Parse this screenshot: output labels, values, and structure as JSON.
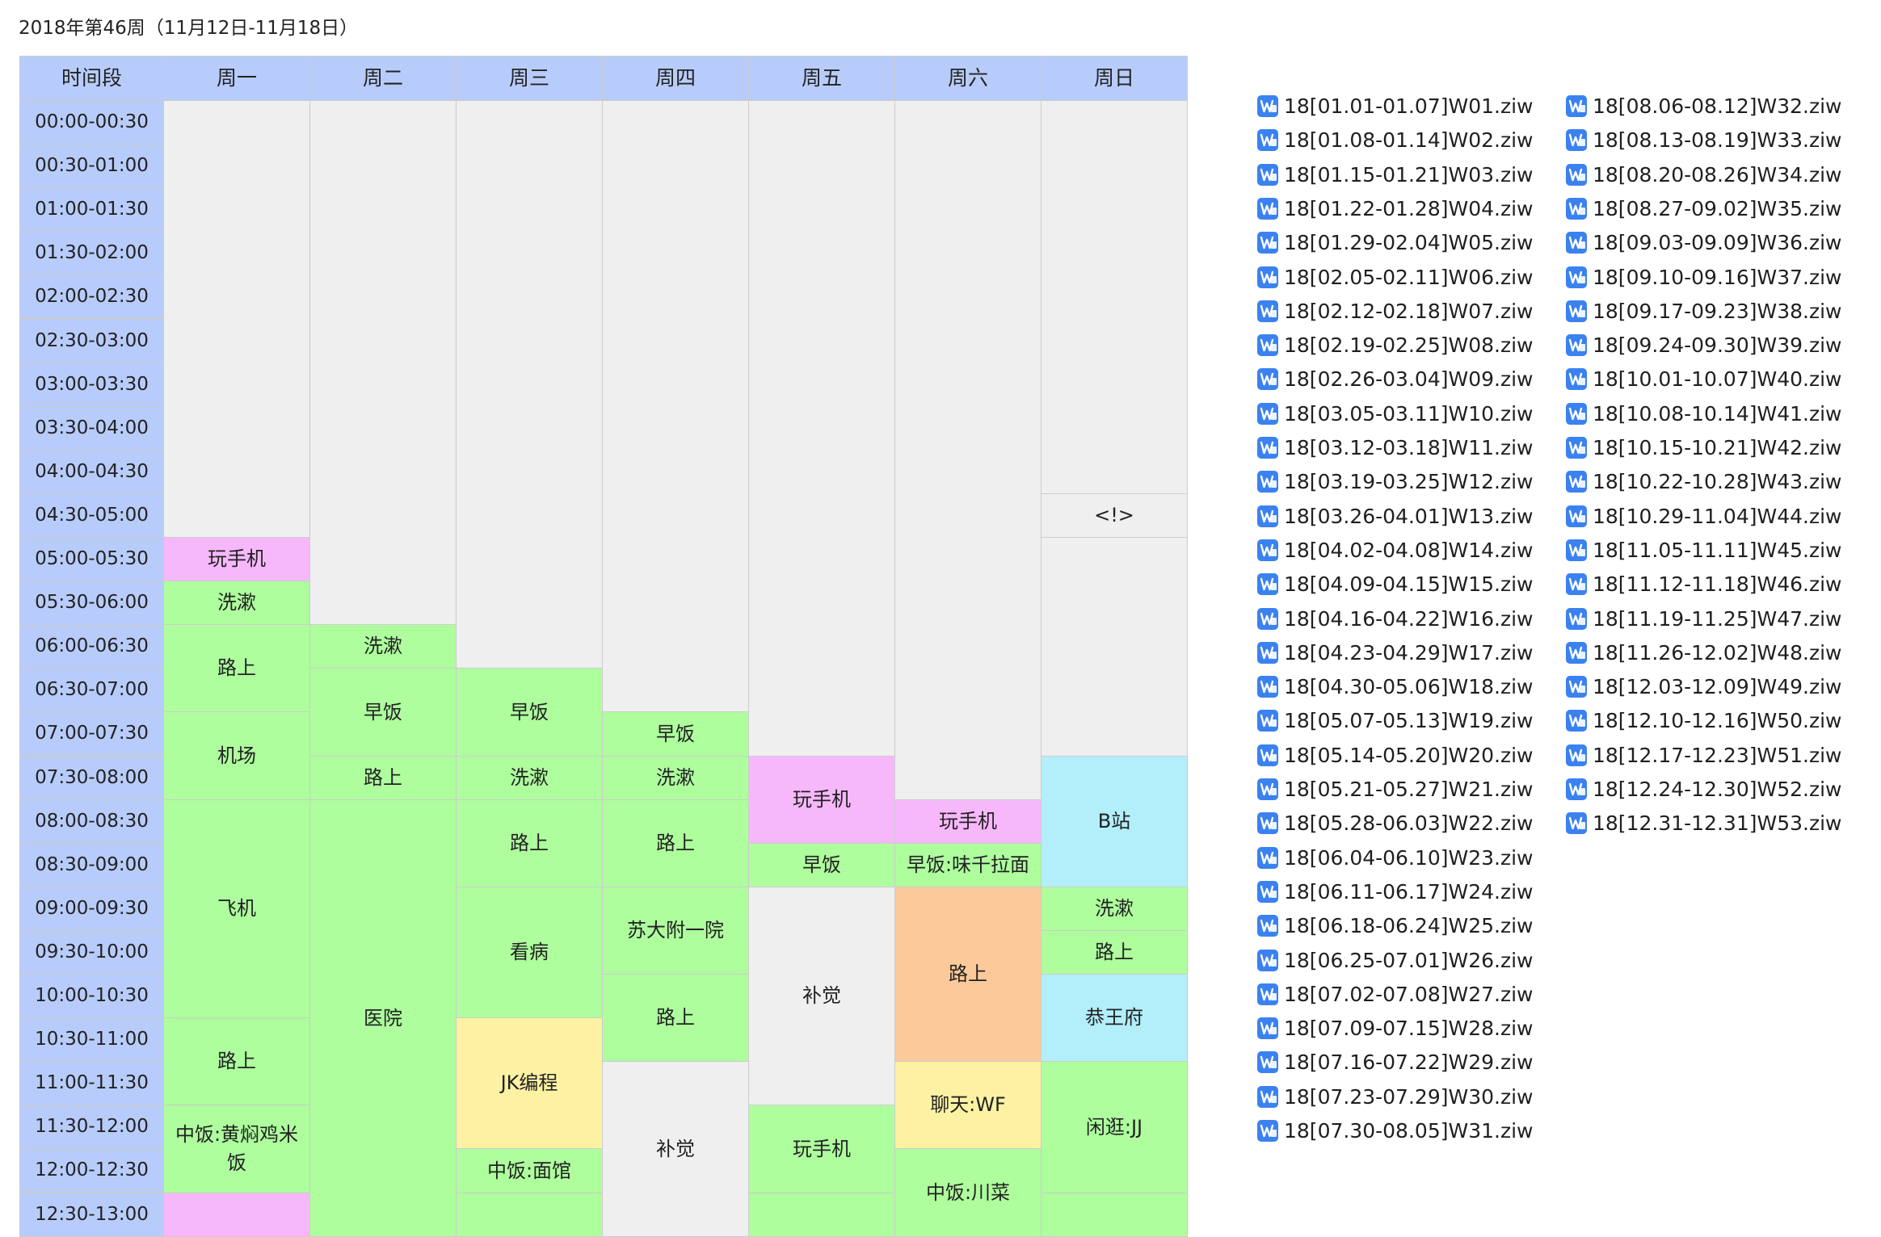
{
  "title": "2018年第46周（11月12日-11月18日）",
  "headers": [
    "时间段",
    "周一",
    "周二",
    "周三",
    "周四",
    "周五",
    "周六",
    "周日"
  ],
  "time_slots": [
    "00:00-00:30",
    "00:30-01:00",
    "01:00-01:30",
    "01:30-02:00",
    "02:00-02:30",
    "02:30-03:00",
    "03:00-03:30",
    "03:30-04:00",
    "04:00-04:30",
    "04:30-05:00",
    "05:00-05:30",
    "05:30-06:00",
    "06:00-06:30",
    "06:30-07:00",
    "07:00-07:30",
    "07:30-08:00",
    "08:00-08:30",
    "08:30-09:00",
    "09:00-09:30",
    "09:30-10:00",
    "10:00-10:30",
    "10:30-11:00",
    "11:00-11:30",
    "11:30-12:00",
    "12:00-12:30",
    "12:30-13:00"
  ],
  "colors": {
    "header": "#b8ccfb",
    "empty": "#efefef",
    "green": "#aefe9e",
    "pink": "#f7b8fb",
    "cyan": "#b2effb",
    "orange": "#fcca9a",
    "yellow": "#fdf2a3",
    "icon": "#3b82f0"
  },
  "schedule": [
    [
      {
        "label": "",
        "start": 0,
        "span": 10,
        "color": "empty"
      },
      {
        "label": "玩手机",
        "start": 10,
        "span": 1,
        "color": "pink"
      },
      {
        "label": "洗漱",
        "start": 11,
        "span": 1,
        "color": "green"
      },
      {
        "label": "路上",
        "start": 12,
        "span": 2,
        "color": "green"
      },
      {
        "label": "机场",
        "start": 14,
        "span": 2,
        "color": "green"
      },
      {
        "label": "飞机",
        "start": 16,
        "span": 5,
        "color": "green"
      },
      {
        "label": "路上",
        "start": 21,
        "span": 2,
        "color": "green"
      },
      {
        "label": "中饭:黄焖鸡米饭",
        "start": 23,
        "span": 2,
        "color": "green"
      },
      {
        "label": "",
        "start": 25,
        "span": 1,
        "color": "pink"
      }
    ],
    [
      {
        "label": "",
        "start": 0,
        "span": 12,
        "color": "empty"
      },
      {
        "label": "洗漱",
        "start": 12,
        "span": 1,
        "color": "green"
      },
      {
        "label": "早饭",
        "start": 13,
        "span": 2,
        "color": "green"
      },
      {
        "label": "路上",
        "start": 15,
        "span": 1,
        "color": "green"
      },
      {
        "label": "医院",
        "start": 16,
        "span": 10,
        "color": "green"
      }
    ],
    [
      {
        "label": "",
        "start": 0,
        "span": 13,
        "color": "empty"
      },
      {
        "label": "早饭",
        "start": 13,
        "span": 2,
        "color": "green"
      },
      {
        "label": "洗漱",
        "start": 15,
        "span": 1,
        "color": "green"
      },
      {
        "label": "路上",
        "start": 16,
        "span": 2,
        "color": "green"
      },
      {
        "label": "看病",
        "start": 18,
        "span": 3,
        "color": "green"
      },
      {
        "label": "JK编程",
        "start": 21,
        "span": 3,
        "color": "yellow"
      },
      {
        "label": "中饭:面馆",
        "start": 24,
        "span": 1,
        "color": "green"
      },
      {
        "label": "",
        "start": 25,
        "span": 1,
        "color": "green"
      }
    ],
    [
      {
        "label": "",
        "start": 0,
        "span": 14,
        "color": "empty"
      },
      {
        "label": "早饭",
        "start": 14,
        "span": 1,
        "color": "green"
      },
      {
        "label": "洗漱",
        "start": 15,
        "span": 1,
        "color": "green"
      },
      {
        "label": "路上",
        "start": 16,
        "span": 2,
        "color": "green"
      },
      {
        "label": "苏大附一院",
        "start": 18,
        "span": 2,
        "color": "green"
      },
      {
        "label": "路上",
        "start": 20,
        "span": 2,
        "color": "green"
      },
      {
        "label": "补觉",
        "start": 22,
        "span": 4,
        "color": "empty"
      }
    ],
    [
      {
        "label": "",
        "start": 0,
        "span": 15,
        "color": "empty"
      },
      {
        "label": "玩手机",
        "start": 15,
        "span": 2,
        "color": "pink"
      },
      {
        "label": "早饭",
        "start": 17,
        "span": 1,
        "color": "green"
      },
      {
        "label": "补觉",
        "start": 18,
        "span": 5,
        "color": "empty"
      },
      {
        "label": "玩手机",
        "start": 23,
        "span": 2,
        "color": "green"
      },
      {
        "label": "",
        "start": 25,
        "span": 1,
        "color": "green"
      }
    ],
    [
      {
        "label": "",
        "start": 0,
        "span": 16,
        "color": "empty"
      },
      {
        "label": "玩手机",
        "start": 16,
        "span": 1,
        "color": "pink"
      },
      {
        "label": "早饭:味千拉面",
        "start": 17,
        "span": 1,
        "color": "green"
      },
      {
        "label": "路上",
        "start": 18,
        "span": 4,
        "color": "orange"
      },
      {
        "label": "聊天:WF",
        "start": 22,
        "span": 2,
        "color": "yellow"
      },
      {
        "label": "中饭:川菜",
        "start": 24,
        "span": 2,
        "color": "green"
      }
    ],
    [
      {
        "label": "",
        "start": 0,
        "span": 9,
        "color": "empty"
      },
      {
        "label": "<!>",
        "start": 9,
        "span": 1,
        "color": "empty"
      },
      {
        "label": "",
        "start": 10,
        "span": 5,
        "color": "empty"
      },
      {
        "label": "B站",
        "start": 15,
        "span": 3,
        "color": "cyan"
      },
      {
        "label": "洗漱",
        "start": 18,
        "span": 1,
        "color": "green"
      },
      {
        "label": "路上",
        "start": 19,
        "span": 1,
        "color": "green"
      },
      {
        "label": "恭王府",
        "start": 20,
        "span": 2,
        "color": "cyan"
      },
      {
        "label": "闲逛:JJ",
        "start": 22,
        "span": 3,
        "color": "green"
      },
      {
        "label": "",
        "start": 25,
        "span": 1,
        "color": "green"
      }
    ]
  ],
  "files": {
    "icon": "word-doc-icon",
    "columns": [
      [
        "18[01.01-01.07]W01.ziw",
        "18[01.08-01.14]W02.ziw",
        "18[01.15-01.21]W03.ziw",
        "18[01.22-01.28]W04.ziw",
        "18[01.29-02.04]W05.ziw",
        "18[02.05-02.11]W06.ziw",
        "18[02.12-02.18]W07.ziw",
        "18[02.19-02.25]W08.ziw",
        "18[02.26-03.04]W09.ziw",
        "18[03.05-03.11]W10.ziw",
        "18[03.12-03.18]W11.ziw",
        "18[03.19-03.25]W12.ziw",
        "18[03.26-04.01]W13.ziw",
        "18[04.02-04.08]W14.ziw",
        "18[04.09-04.15]W15.ziw",
        "18[04.16-04.22]W16.ziw",
        "18[04.23-04.29]W17.ziw",
        "18[04.30-05.06]W18.ziw",
        "18[05.07-05.13]W19.ziw",
        "18[05.14-05.20]W20.ziw",
        "18[05.21-05.27]W21.ziw",
        "18[05.28-06.03]W22.ziw",
        "18[06.04-06.10]W23.ziw",
        "18[06.11-06.17]W24.ziw",
        "18[06.18-06.24]W25.ziw",
        "18[06.25-07.01]W26.ziw",
        "18[07.02-07.08]W27.ziw",
        "18[07.09-07.15]W28.ziw",
        "18[07.16-07.22]W29.ziw",
        "18[07.23-07.29]W30.ziw",
        "18[07.30-08.05]W31.ziw"
      ],
      [
        "18[08.06-08.12]W32.ziw",
        "18[08.13-08.19]W33.ziw",
        "18[08.20-08.26]W34.ziw",
        "18[08.27-09.02]W35.ziw",
        "18[09.03-09.09]W36.ziw",
        "18[09.10-09.16]W37.ziw",
        "18[09.17-09.23]W38.ziw",
        "18[09.24-09.30]W39.ziw",
        "18[10.01-10.07]W40.ziw",
        "18[10.08-10.14]W41.ziw",
        "18[10.15-10.21]W42.ziw",
        "18[10.22-10.28]W43.ziw",
        "18[10.29-11.04]W44.ziw",
        "18[11.05-11.11]W45.ziw",
        "18[11.12-11.18]W46.ziw",
        "18[11.19-11.25]W47.ziw",
        "18[11.26-12.02]W48.ziw",
        "18[12.03-12.09]W49.ziw",
        "18[12.10-12.16]W50.ziw",
        "18[12.17-12.23]W51.ziw",
        "18[12.24-12.30]W52.ziw",
        "18[12.31-12.31]W53.ziw"
      ]
    ]
  }
}
